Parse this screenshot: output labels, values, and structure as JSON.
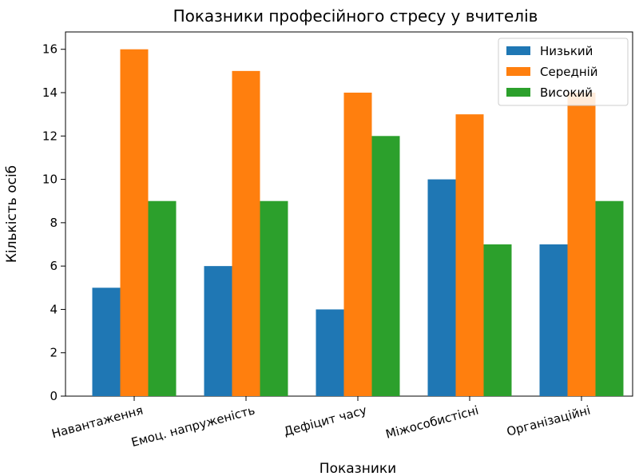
{
  "chart_data": {
    "type": "bar",
    "title": "Показники професійного стресу у вчителів",
    "xlabel": "Показники",
    "ylabel": "Кількість осіб",
    "categories": [
      "Навантаження",
      "Емоц. напруженість",
      "Дефіцит часу",
      "Міжособистісні",
      "Організаційні"
    ],
    "series": [
      {
        "name": "Низький",
        "values": [
          5,
          6,
          4,
          10,
          7
        ],
        "color": "#1f77b4"
      },
      {
        "name": "Середній",
        "values": [
          16,
          15,
          14,
          13,
          14
        ],
        "color": "#ff7f0e"
      },
      {
        "name": "Високий",
        "values": [
          9,
          9,
          12,
          7,
          9
        ],
        "color": "#2ca02c"
      }
    ],
    "ylim": [
      0,
      16.8
    ],
    "yticks": [
      0,
      2,
      4,
      6,
      8,
      10,
      12,
      14,
      16
    ],
    "grid": false,
    "legend_position": "top-right"
  }
}
